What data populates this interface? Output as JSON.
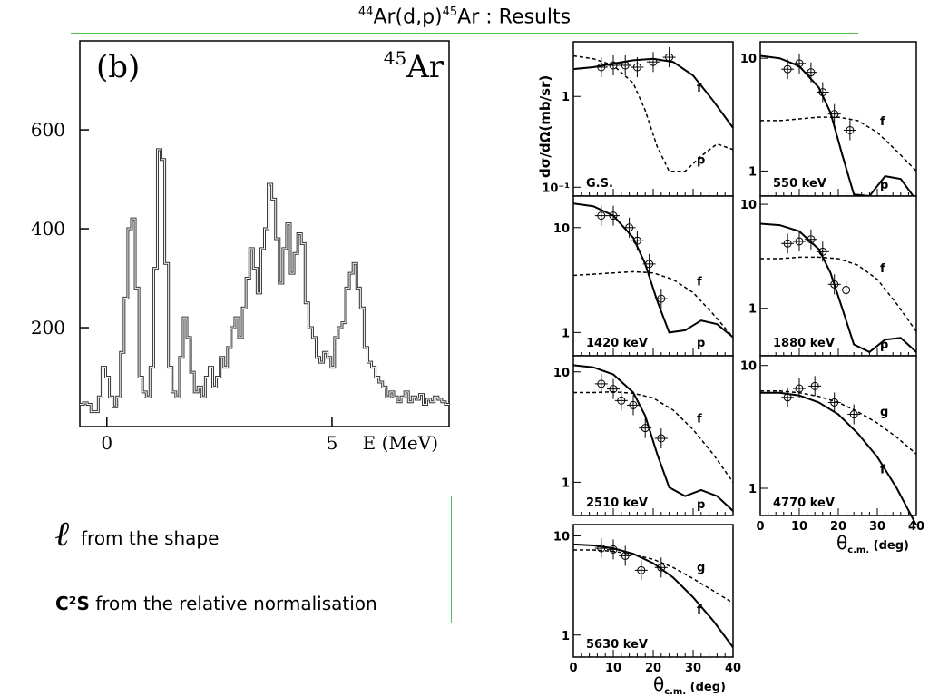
{
  "title": {
    "pre": "44",
    "reaction": "Ar(d,p)",
    "mass": "45",
    "tail": "Ar : Results"
  },
  "notes": {
    "symbol": "ℓ",
    "line1": "from the shape",
    "c2s": "C²S",
    "line2": "from the relative normalisation"
  },
  "colors": {
    "accent_green": "#4fc24f",
    "ink": "#000000"
  },
  "chart_data": [
    {
      "type": "line",
      "panel_label": "(b)",
      "isotope_label": "45Ar",
      "isotope_mass": "45",
      "isotope_symbol": "Ar",
      "xlabel": "E (MeV)",
      "ylabel": "",
      "xlim": [
        -0.6,
        7.6
      ],
      "ylim": [
        0,
        780
      ],
      "xticks": [
        0,
        5
      ],
      "xtick_labels": [
        "0",
        "5"
      ],
      "yticks": [
        200,
        400,
        600
      ],
      "ytick_labels": [
        "200",
        "400",
        "600"
      ],
      "step_counts": [
        45,
        48,
        45,
        30,
        30,
        60,
        120,
        100,
        60,
        40,
        60,
        150,
        260,
        400,
        420,
        280,
        100,
        70,
        60,
        120,
        320,
        560,
        540,
        330,
        120,
        70,
        60,
        140,
        220,
        180,
        110,
        70,
        80,
        60,
        100,
        120,
        80,
        100,
        140,
        120,
        160,
        200,
        220,
        180,
        240,
        300,
        360,
        320,
        270,
        360,
        400,
        490,
        460,
        380,
        290,
        360,
        410,
        310,
        350,
        390,
        370,
        250,
        200,
        180,
        140,
        130,
        150,
        140,
        120,
        180,
        200,
        210,
        280,
        310,
        330,
        280,
        240,
        160,
        130,
        120,
        100,
        90,
        80,
        60,
        70,
        60,
        50,
        60,
        70,
        50,
        60,
        55,
        65,
        45,
        55,
        50,
        60,
        55,
        50,
        45
      ],
      "step_x_range": [
        -0.6,
        7.6
      ]
    },
    {
      "type": "line",
      "panel": "G.S.",
      "ylog": true,
      "yticks": [
        0.1,
        1
      ],
      "ytick_labels": [
        "10⁻¹",
        "1"
      ],
      "yaxis_label": "dσ/dΩ(mb/sr)",
      "xlim": [
        0,
        40
      ],
      "curves": [
        {
          "name": "f",
          "style": "solid",
          "x": [
            0,
            5,
            10,
            15,
            20,
            25,
            30,
            35,
            40
          ],
          "y": [
            2.0,
            2.1,
            2.3,
            2.5,
            2.6,
            2.4,
            1.7,
            0.9,
            0.45
          ]
        },
        {
          "name": "p",
          "style": "dashed",
          "x": [
            0,
            5,
            10,
            15,
            18,
            21,
            24,
            28,
            32,
            36,
            40
          ],
          "y": [
            2.8,
            2.6,
            2.2,
            1.4,
            0.7,
            0.28,
            0.15,
            0.15,
            0.22,
            0.3,
            0.26
          ]
        }
      ],
      "points": [
        {
          "x": 7,
          "y": 2.1
        },
        {
          "x": 10,
          "y": 2.2
        },
        {
          "x": 13,
          "y": 2.2
        },
        {
          "x": 16,
          "y": 2.1
        },
        {
          "x": 20,
          "y": 2.4
        },
        {
          "x": 24,
          "y": 2.7
        }
      ]
    },
    {
      "type": "line",
      "panel": "550 keV",
      "ylog": true,
      "yticks": [
        1,
        10
      ],
      "ytick_labels": [
        "1",
        "10"
      ],
      "xlim": [
        0,
        40
      ],
      "curves": [
        {
          "name": "f",
          "style": "dashed",
          "x": [
            0,
            5,
            10,
            15,
            20,
            25,
            30,
            35,
            40
          ],
          "y": [
            2.8,
            2.8,
            2.9,
            3.0,
            3.0,
            2.8,
            2.2,
            1.5,
            1.0
          ]
        },
        {
          "name": "p",
          "style": "solid",
          "x": [
            0,
            5,
            10,
            15,
            18,
            21,
            24,
            28,
            32,
            36,
            40
          ],
          "y": [
            10.5,
            10.0,
            8.5,
            5.5,
            3.3,
            1.4,
            0.62,
            0.6,
            0.9,
            0.85,
            0.55
          ]
        }
      ],
      "points": [
        {
          "x": 7,
          "y": 8.0
        },
        {
          "x": 10,
          "y": 9.0
        },
        {
          "x": 13,
          "y": 7.5
        },
        {
          "x": 16,
          "y": 5.0
        },
        {
          "x": 19,
          "y": 3.2
        },
        {
          "x": 23,
          "y": 2.3
        }
      ]
    },
    {
      "type": "line",
      "panel": "1420 keV",
      "ylog": true,
      "yticks": [
        1,
        10
      ],
      "ytick_labels": [
        "1",
        "10"
      ],
      "xlim": [
        0,
        40
      ],
      "curves": [
        {
          "name": "f",
          "style": "dashed",
          "x": [
            0,
            5,
            10,
            15,
            20,
            25,
            30,
            35,
            40
          ],
          "y": [
            3.5,
            3.6,
            3.7,
            3.8,
            3.7,
            3.2,
            2.4,
            1.5,
            0.9
          ]
        },
        {
          "name": "p",
          "style": "solid",
          "x": [
            0,
            5,
            10,
            15,
            18,
            21,
            24,
            28,
            32,
            36,
            40
          ],
          "y": [
            17,
            16,
            13,
            8,
            4.5,
            2.0,
            1.0,
            1.05,
            1.3,
            1.2,
            0.9
          ]
        }
      ],
      "points": [
        {
          "x": 7,
          "y": 13
        },
        {
          "x": 10,
          "y": 13
        },
        {
          "x": 14,
          "y": 10
        },
        {
          "x": 16,
          "y": 7.5
        },
        {
          "x": 19,
          "y": 4.5
        },
        {
          "x": 22,
          "y": 2.1
        }
      ]
    },
    {
      "type": "line",
      "panel": "1880 keV",
      "ylog": true,
      "yticks": [
        1,
        10
      ],
      "ytick_labels": [
        "1",
        "10"
      ],
      "xlim": [
        0,
        40
      ],
      "curves": [
        {
          "name": "f",
          "style": "dashed",
          "x": [
            0,
            5,
            10,
            15,
            20,
            25,
            30,
            35,
            40
          ],
          "y": [
            3.0,
            3.0,
            3.1,
            3.1,
            3.0,
            2.6,
            1.9,
            1.1,
            0.6
          ]
        },
        {
          "name": "p",
          "style": "solid",
          "x": [
            0,
            5,
            10,
            15,
            18,
            21,
            24,
            28,
            32,
            36,
            40
          ],
          "y": [
            6.5,
            6.3,
            5.5,
            3.7,
            2.2,
            1.0,
            0.45,
            0.38,
            0.5,
            0.52,
            0.38
          ]
        }
      ],
      "points": [
        {
          "x": 7,
          "y": 4.2
        },
        {
          "x": 10,
          "y": 4.4
        },
        {
          "x": 13,
          "y": 4.6
        },
        {
          "x": 16,
          "y": 3.5
        },
        {
          "x": 19,
          "y": 1.7
        },
        {
          "x": 22,
          "y": 1.5
        }
      ]
    },
    {
      "type": "line",
      "panel": "2510 keV",
      "ylog": true,
      "yticks": [
        1,
        10
      ],
      "ytick_labels": [
        "1",
        "10"
      ],
      "xlim": [
        0,
        40
      ],
      "curves": [
        {
          "name": "f",
          "style": "dashed",
          "x": [
            0,
            5,
            10,
            15,
            20,
            25,
            30,
            35,
            40
          ],
          "y": [
            6.5,
            6.5,
            6.6,
            6.4,
            5.8,
            4.5,
            3.0,
            1.8,
            1.0
          ]
        },
        {
          "name": "p",
          "style": "solid",
          "x": [
            0,
            5,
            10,
            15,
            18,
            21,
            24,
            28,
            32,
            36,
            40
          ],
          "y": [
            11.5,
            11,
            9.5,
            6.5,
            4.0,
            1.8,
            0.9,
            0.75,
            0.85,
            0.75,
            0.55
          ]
        }
      ],
      "points": [
        {
          "x": 7,
          "y": 7.8
        },
        {
          "x": 10,
          "y": 7.0
        },
        {
          "x": 12,
          "y": 5.5
        },
        {
          "x": 15,
          "y": 5.0
        },
        {
          "x": 18,
          "y": 3.1
        },
        {
          "x": 22,
          "y": 2.5
        }
      ]
    },
    {
      "type": "line",
      "panel": "4770 keV",
      "ylog": true,
      "yticks": [
        1,
        10
      ],
      "ytick_labels": [
        "1",
        "10"
      ],
      "xlim": [
        0,
        40
      ],
      "xlabel": "θc.m. (deg)",
      "xticks": [
        0,
        10,
        20,
        30,
        40
      ],
      "curves": [
        {
          "name": "g",
          "style": "dashed",
          "x": [
            0,
            5,
            10,
            15,
            20,
            25,
            30,
            35,
            40
          ],
          "y": [
            6.2,
            6.2,
            6.0,
            5.6,
            5.0,
            4.2,
            3.4,
            2.6,
            1.9
          ]
        },
        {
          "name": "f",
          "style": "solid",
          "x": [
            0,
            5,
            10,
            15,
            20,
            25,
            30,
            35,
            40
          ],
          "y": [
            6.0,
            6.0,
            5.7,
            5.0,
            4.0,
            2.8,
            1.8,
            1.0,
            0.5
          ]
        }
      ],
      "points": [
        {
          "x": 7,
          "y": 5.5
        },
        {
          "x": 10,
          "y": 6.5
        },
        {
          "x": 14,
          "y": 6.8
        },
        {
          "x": 19,
          "y": 5.0
        },
        {
          "x": 24,
          "y": 4.0
        }
      ]
    },
    {
      "type": "line",
      "panel": "5630 keV",
      "ylog": true,
      "yticks": [
        1,
        10
      ],
      "ytick_labels": [
        "1",
        "10"
      ],
      "xlim": [
        0,
        40
      ],
      "xlabel": "θc.m. (deg)",
      "xticks": [
        0,
        10,
        20,
        30,
        40
      ],
      "curves": [
        {
          "name": "g",
          "style": "dashed",
          "x": [
            0,
            5,
            10,
            15,
            20,
            25,
            30,
            35,
            40
          ],
          "y": [
            7.2,
            7.2,
            7.0,
            6.5,
            5.8,
            4.8,
            3.7,
            2.8,
            2.1
          ]
        },
        {
          "name": "f",
          "style": "solid",
          "x": [
            0,
            5,
            10,
            15,
            20,
            25,
            30,
            35,
            40
          ],
          "y": [
            8.2,
            8.0,
            7.5,
            6.6,
            5.3,
            3.8,
            2.4,
            1.4,
            0.75
          ]
        }
      ],
      "points": [
        {
          "x": 7,
          "y": 7.5
        },
        {
          "x": 10,
          "y": 7.3
        },
        {
          "x": 13,
          "y": 6.3
        },
        {
          "x": 17,
          "y": 4.5
        },
        {
          "x": 22,
          "y": 4.8
        }
      ]
    }
  ]
}
